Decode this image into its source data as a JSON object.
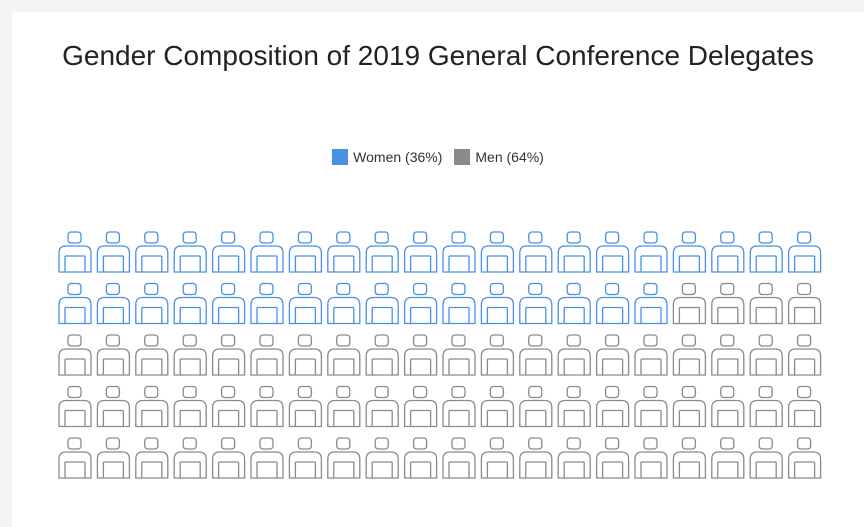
{
  "chart_data": {
    "type": "pictogram",
    "title": "Gender Composition of 2019 General Conference Delegates",
    "categories": [
      "Women (36%)",
      "Men (64%)"
    ],
    "values": [
      36,
      64
    ],
    "colors": [
      "#4a90e2",
      "#8a8a8a"
    ]
  }
}
